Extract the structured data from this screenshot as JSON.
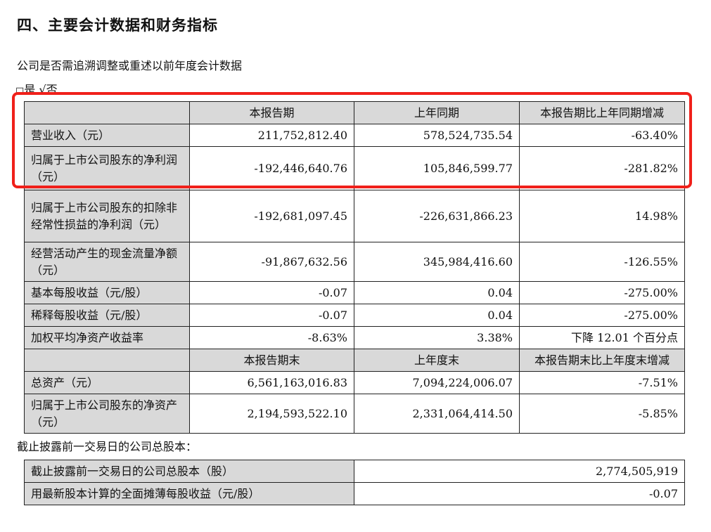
{
  "section_title": "四、主要会计数据和财务指标",
  "question": "公司是否需追溯调整或重述以前年度会计数据",
  "answer": {
    "yes_box": "□",
    "yes_label": "是",
    "no_check": "√",
    "no_label": "否"
  },
  "main_table": {
    "header1": [
      "",
      "本报告期",
      "上年同期",
      "本报告期比上年同期增减"
    ],
    "rows1": [
      [
        "营业收入（元）",
        "211,752,812.40",
        "578,524,735.54",
        "-63.40%"
      ],
      [
        "归属于上市公司股东的净利润（元）",
        "-192,446,640.76",
        "105,846,599.77",
        "-281.82%"
      ],
      [
        "归属于上市公司股东的扣除非经常性损益的净利润（元）",
        "-192,681,097.45",
        "-226,631,866.23",
        "14.98%"
      ],
      [
        "经营活动产生的现金流量净额（元）",
        "-91,867,632.56",
        "345,984,416.60",
        "-126.55%"
      ],
      [
        "基本每股收益（元/股）",
        "-0.07",
        "0.04",
        "-275.00%"
      ],
      [
        "稀释每股收益（元/股）",
        "-0.07",
        "0.04",
        "-275.00%"
      ],
      [
        "加权平均净资产收益率",
        "-8.63%",
        "3.38%",
        "下降 12.01 个百分点"
      ]
    ],
    "header2": [
      "",
      "本报告期末",
      "上年度末",
      "本报告期末比上年度末增减"
    ],
    "rows2": [
      [
        "总资产（元）",
        "6,561,163,016.83",
        "7,094,224,006.07",
        "-7.51%"
      ],
      [
        "归属于上市公司股东的净资产（元）",
        "2,194,593,522.10",
        "2,331,064,414.50",
        "-5.85%"
      ]
    ]
  },
  "shares_note": "截止披露前一交易日的公司总股本：",
  "shares_table": [
    [
      "截止披露前一交易日的公司总股本（股）",
      "2,774,505,919"
    ],
    [
      "用最新股本计算的全面摊薄每股收益（元/股）",
      "-0.07"
    ]
  ],
  "highlight_color": "#f0201a"
}
